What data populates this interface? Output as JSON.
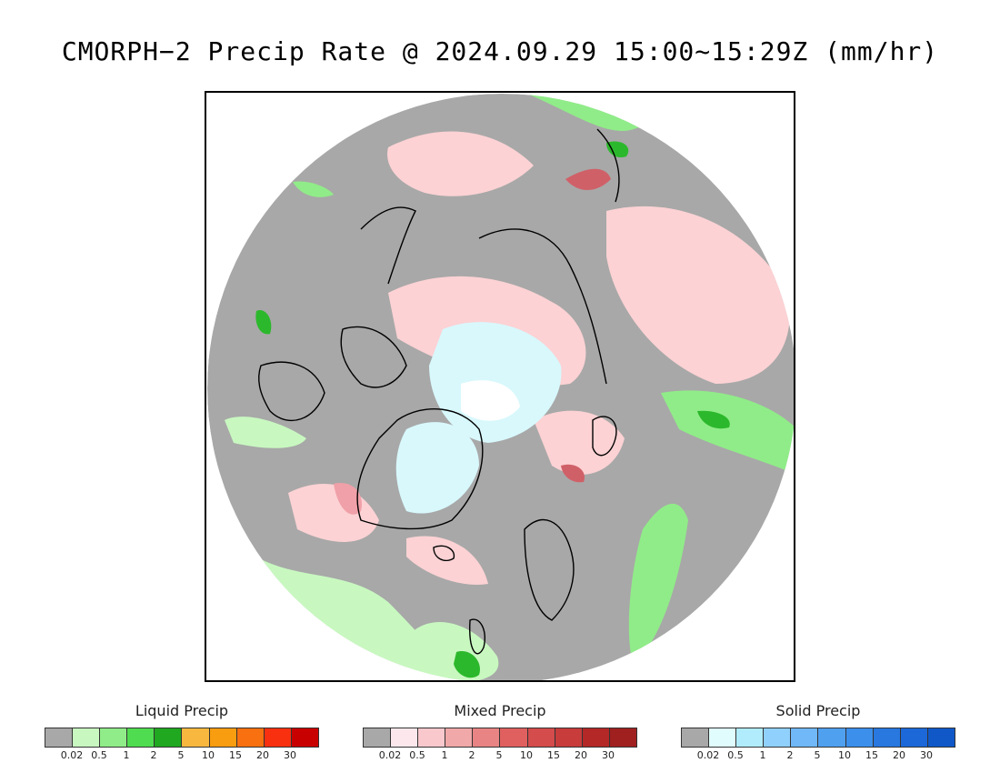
{
  "title": "CMORPH−2 Precip Rate @ 2024.09.29 15:00~15:29Z (mm/hr)",
  "map": {
    "projection": "north-polar-stereographic",
    "colors": {
      "no_precip": "#a8a8a8",
      "liquid_light": "#c8f8c0",
      "liquid_mid": "#90ec88",
      "liquid_heavy": "#2cb82c",
      "mixed_light": "#fcd2d4",
      "mixed_mid": "#f0a0a8",
      "mixed_heavy": "#d06068",
      "solid_light": "#d8f8fc",
      "solid_white": "#ffffff",
      "coast": "#000000"
    }
  },
  "legends": [
    {
      "title": "Liquid Precip",
      "colors": [
        "#a8a8a8",
        "#c8f8c0",
        "#90ec88",
        "#50dc50",
        "#20a820",
        "#f8b840",
        "#f89c10",
        "#f87010",
        "#f83010",
        "#c80000"
      ],
      "ticks": [
        "0.02",
        "0.5",
        "1",
        "2",
        "5",
        "10",
        "15",
        "20",
        "30"
      ]
    },
    {
      "title": "Mixed Precip",
      "colors": [
        "#a8a8a8",
        "#fce8ec",
        "#f8c8cc",
        "#f0a8a8",
        "#e88484",
        "#e06060",
        "#d44c4c",
        "#c83c3c",
        "#b42828",
        "#a02020"
      ],
      "ticks": [
        "0.02",
        "0.5",
        "1",
        "2",
        "5",
        "10",
        "15",
        "20",
        "30"
      ]
    },
    {
      "title": "Solid Precip",
      "colors": [
        "#a8a8a8",
        "#e0fcfc",
        "#b0ecfc",
        "#90d0fc",
        "#70b8f8",
        "#50a0f0",
        "#3c90ec",
        "#2878e0",
        "#1c68d8",
        "#1058c8"
      ],
      "ticks": [
        "0.02",
        "0.5",
        "1",
        "2",
        "5",
        "10",
        "15",
        "20",
        "30"
      ]
    }
  ]
}
